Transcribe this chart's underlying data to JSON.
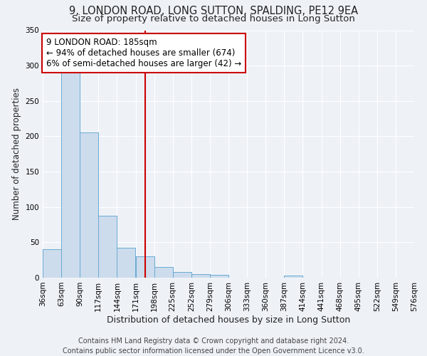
{
  "title": "9, LONDON ROAD, LONG SUTTON, SPALDING, PE12 9EA",
  "subtitle": "Size of property relative to detached houses in Long Sutton",
  "xlabel": "Distribution of detached houses by size in Long Sutton",
  "ylabel": "Number of detached properties",
  "footer_line1": "Contains HM Land Registry data © Crown copyright and database right 2024.",
  "footer_line2": "Contains public sector information licensed under the Open Government Licence v3.0.",
  "bin_edges": [
    36,
    63,
    90,
    117,
    144,
    171,
    198,
    225,
    252,
    279,
    306,
    333,
    360,
    387,
    414,
    441,
    468,
    495,
    522,
    549,
    576
  ],
  "bar_heights": [
    40,
    290,
    205,
    88,
    42,
    30,
    15,
    8,
    5,
    4,
    0,
    0,
    0,
    3,
    0,
    0,
    0,
    0,
    0,
    0
  ],
  "bar_color": "#ccdcec",
  "bar_edge_color": "#6aaad4",
  "property_size": 185,
  "annotation_line1": "9 LONDON ROAD: 185sqm",
  "annotation_line2": "← 94% of detached houses are smaller (674)",
  "annotation_line3": "6% of semi-detached houses are larger (42) →",
  "annotation_box_color": "white",
  "annotation_box_edge": "#cc0000",
  "vline_color": "#cc0000",
  "vline_x": 185,
  "ylim": [
    0,
    350
  ],
  "title_fontsize": 10.5,
  "subtitle_fontsize": 9.5,
  "xlabel_fontsize": 9,
  "ylabel_fontsize": 8.5,
  "tick_fontsize": 7.5,
  "annotation_fontsize": 8.5,
  "footer_fontsize": 7,
  "background_color": "#eef2f7",
  "plot_background": "#eef2f7",
  "grid_color": "#ffffff",
  "title_color": "#222222"
}
